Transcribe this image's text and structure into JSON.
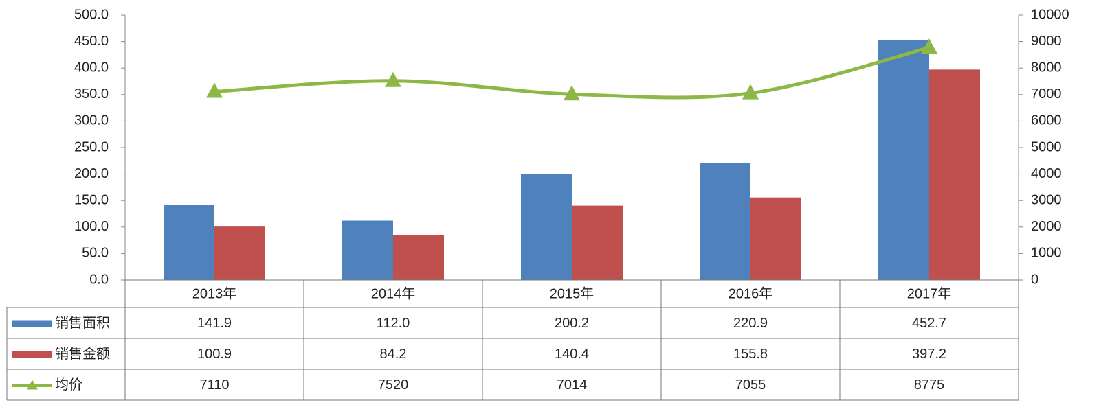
{
  "chart_data": {
    "type": "bar",
    "categories": [
      "2013年",
      "2014年",
      "2015年",
      "2016年",
      "2017年"
    ],
    "series": [
      {
        "name": "销售面积",
        "color": "#4f81bd",
        "values": [
          141.9,
          112.0,
          200.2,
          220.9,
          452.7
        ],
        "value_labels": [
          "141.9",
          "112.0",
          "200.2",
          "220.9",
          "452.7"
        ]
      },
      {
        "name": "销售金额",
        "color": "#c0504d",
        "values": [
          100.9,
          84.2,
          140.4,
          155.8,
          397.2
        ],
        "value_labels": [
          "100.9",
          "84.2",
          "140.4",
          "155.8",
          "397.2"
        ]
      },
      {
        "name": "均价",
        "color": "#8db846",
        "type": "line",
        "axis": "y2",
        "values": [
          7110,
          7520,
          7014,
          7055,
          8775
        ]
      }
    ],
    "ylim": [
      0,
      500
    ],
    "yticks": [
      {
        "value": 0,
        "label": "0.0"
      },
      {
        "value": 50,
        "label": "50.0"
      },
      {
        "value": 100,
        "label": "100.0"
      },
      {
        "value": 150,
        "label": "150.0"
      },
      {
        "value": 200,
        "label": "200.0"
      },
      {
        "value": 250,
        "label": "250.0"
      },
      {
        "value": 300,
        "label": "300.0"
      },
      {
        "value": 350,
        "label": "350.0"
      },
      {
        "value": 400,
        "label": "400.0"
      },
      {
        "value": 450,
        "label": "450.0"
      },
      {
        "value": 500,
        "label": "500.0"
      }
    ],
    "y2lim": [
      0,
      10000
    ],
    "y2ticks": [
      0,
      1000,
      2000,
      3000,
      4000,
      5000,
      6000,
      7000,
      8000,
      9000,
      10000
    ],
    "data_table": true
  }
}
